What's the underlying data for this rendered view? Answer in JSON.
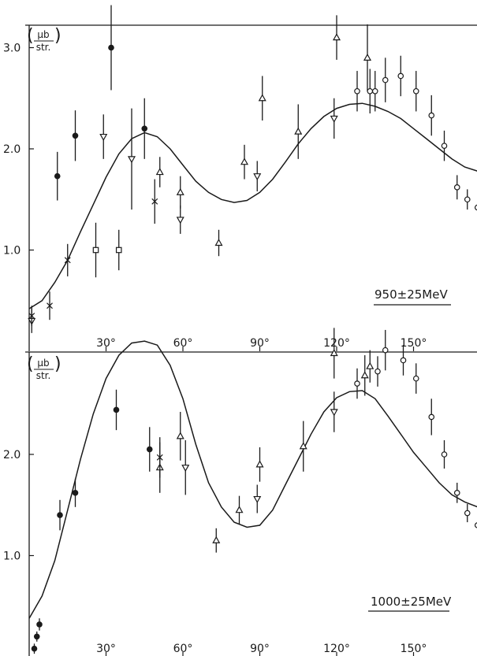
{
  "figure": {
    "ink_color": "#1a1a1a",
    "background_color": "#ffffff"
  },
  "chart_data": [
    {
      "type": "scatter",
      "label": "950±25MeV",
      "ylabel_num": "μb",
      "ylabel_den": "str.",
      "xlim": [
        0,
        175
      ],
      "ylim": [
        0,
        3.25
      ],
      "xticks": [
        30,
        60,
        90,
        120,
        150
      ],
      "xtick_labels": [
        "30°",
        "60°",
        "90°",
        "120°",
        "150°"
      ],
      "yticks": [
        1.0,
        2.0,
        3.0
      ],
      "ytick_labels": [
        "1.0",
        "2.0",
        "3.0"
      ],
      "series": [
        {
          "marker": "filled-circle",
          "points": [
            {
              "x": 11,
              "y": 1.73,
              "err": 0.24
            },
            {
              "x": 18,
              "y": 2.13,
              "err": 0.25
            },
            {
              "x": 32,
              "y": 3.0,
              "err": 0.42
            },
            {
              "x": 45,
              "y": 2.2,
              "err": 0.3
            }
          ]
        },
        {
          "marker": "down-triangle",
          "points": [
            {
              "x": 1,
              "y": 0.3,
              "err": 0.12
            },
            {
              "x": 29,
              "y": 2.12,
              "err": 0.22
            },
            {
              "x": 40,
              "y": 1.9,
              "err": 0.5
            },
            {
              "x": 59,
              "y": 1.3,
              "err": 0.14
            },
            {
              "x": 89,
              "y": 1.73,
              "err": 0.15
            },
            {
              "x": 119,
              "y": 2.3,
              "err": 0.2
            }
          ]
        },
        {
          "marker": "up-triangle",
          "points": [
            {
              "x": 51,
              "y": 1.77,
              "err": 0.15
            },
            {
              "x": 59,
              "y": 1.57,
              "err": 0.16
            },
            {
              "x": 74,
              "y": 1.07,
              "err": 0.13
            },
            {
              "x": 84,
              "y": 1.87,
              "err": 0.17
            },
            {
              "x": 91,
              "y": 2.5,
              "err": 0.22
            },
            {
              "x": 105,
              "y": 2.17,
              "err": 0.27
            },
            {
              "x": 120,
              "y": 3.1,
              "err": 0.22
            },
            {
              "x": 132,
              "y": 2.9,
              "err": 0.33
            }
          ]
        },
        {
          "marker": "cross",
          "points": [
            {
              "x": 1,
              "y": 0.35,
              "err": 0.1
            },
            {
              "x": 8,
              "y": 0.45,
              "err": 0.14
            },
            {
              "x": 15,
              "y": 0.9,
              "err": 0.16
            },
            {
              "x": 49,
              "y": 1.48,
              "err": 0.22
            }
          ]
        },
        {
          "marker": "square",
          "points": [
            {
              "x": 26,
              "y": 1.0,
              "err": 0.27
            },
            {
              "x": 35,
              "y": 1.0,
              "err": 0.2
            }
          ]
        },
        {
          "marker": "open-circle",
          "points": [
            {
              "x": 128,
              "y": 2.57,
              "err": 0.2
            },
            {
              "x": 133,
              "y": 2.57,
              "err": 0.22
            },
            {
              "x": 135,
              "y": 2.57,
              "err": 0.2
            },
            {
              "x": 139,
              "y": 2.68,
              "err": 0.22
            },
            {
              "x": 145,
              "y": 2.72,
              "err": 0.2
            },
            {
              "x": 151,
              "y": 2.57,
              "err": 0.2
            },
            {
              "x": 157,
              "y": 2.33,
              "err": 0.2
            },
            {
              "x": 162,
              "y": 2.03,
              "err": 0.15
            },
            {
              "x": 167,
              "y": 1.62,
              "err": 0.12
            },
            {
              "x": 171,
              "y": 1.5,
              "err": 0.1
            },
            {
              "x": 175,
              "y": 1.42,
              "err": 0.08
            }
          ]
        }
      ],
      "curve": {
        "x": [
          0,
          5,
          10,
          15,
          20,
          25,
          30,
          35,
          40,
          45,
          50,
          55,
          60,
          65,
          70,
          75,
          80,
          85,
          90,
          95,
          100,
          105,
          110,
          115,
          120,
          125,
          130,
          135,
          140,
          145,
          150,
          155,
          160,
          165,
          170,
          175
        ],
        "y": [
          0.42,
          0.5,
          0.68,
          0.9,
          1.18,
          1.45,
          1.72,
          1.95,
          2.1,
          2.16,
          2.12,
          2.0,
          1.84,
          1.68,
          1.57,
          1.5,
          1.47,
          1.49,
          1.57,
          1.7,
          1.87,
          2.05,
          2.2,
          2.32,
          2.4,
          2.44,
          2.45,
          2.42,
          2.37,
          2.3,
          2.2,
          2.1,
          2.0,
          1.9,
          1.82,
          1.78
        ]
      }
    },
    {
      "type": "scatter",
      "label": "1000±25MeV",
      "ylabel_num": "μb",
      "ylabel_den": "str.",
      "xlim": [
        0,
        175
      ],
      "ylim": [
        0,
        3.1
      ],
      "xticks": [
        30,
        60,
        90,
        120,
        150
      ],
      "xtick_labels": [
        "30°",
        "60°",
        "90°",
        "120°",
        "150°"
      ],
      "yticks": [
        1.0,
        2.0
      ],
      "ytick_labels": [
        "1.0",
        "2.0"
      ],
      "series": [
        {
          "marker": "filled-circle",
          "points": [
            {
              "x": 2,
              "y": 0.08,
              "err": 0.05
            },
            {
              "x": 3,
              "y": 0.2,
              "err": 0.05
            },
            {
              "x": 4,
              "y": 0.32,
              "err": 0.06
            },
            {
              "x": 12,
              "y": 1.4,
              "err": 0.15
            },
            {
              "x": 18,
              "y": 1.62,
              "err": 0.14
            },
            {
              "x": 34,
              "y": 2.44,
              "err": 0.2
            },
            {
              "x": 47,
              "y": 2.05,
              "err": 0.22
            }
          ]
        },
        {
          "marker": "down-triangle",
          "points": [
            {
              "x": 61,
              "y": 1.87,
              "err": 0.27
            },
            {
              "x": 89,
              "y": 1.56,
              "err": 0.14
            },
            {
              "x": 119,
              "y": 2.42,
              "err": 0.2
            }
          ]
        },
        {
          "marker": "up-triangle",
          "points": [
            {
              "x": 51,
              "y": 1.87,
              "err": 0.25
            },
            {
              "x": 59,
              "y": 2.18,
              "err": 0.24
            },
            {
              "x": 73,
              "y": 1.15,
              "err": 0.12
            },
            {
              "x": 82,
              "y": 1.45,
              "err": 0.14
            },
            {
              "x": 90,
              "y": 1.9,
              "err": 0.17
            },
            {
              "x": 107,
              "y": 2.08,
              "err": 0.25
            },
            {
              "x": 119,
              "y": 3.0,
              "err": 0.25
            },
            {
              "x": 131,
              "y": 2.78,
              "err": 0.2
            },
            {
              "x": 133,
              "y": 2.87,
              "err": 0.16
            }
          ]
        },
        {
          "marker": "cross",
          "points": [
            {
              "x": 51,
              "y": 1.97,
              "err": 0.2
            }
          ]
        },
        {
          "marker": "open-circle",
          "points": [
            {
              "x": 128,
              "y": 2.7,
              "err": 0.15
            },
            {
              "x": 136,
              "y": 2.82,
              "err": 0.15
            },
            {
              "x": 139,
              "y": 3.03,
              "err": 0.2
            },
            {
              "x": 146,
              "y": 2.93,
              "err": 0.15
            },
            {
              "x": 151,
              "y": 2.75,
              "err": 0.15
            },
            {
              "x": 157,
              "y": 2.37,
              "err": 0.18
            },
            {
              "x": 162,
              "y": 2.0,
              "err": 0.14
            },
            {
              "x": 167,
              "y": 1.62,
              "err": 0.1
            },
            {
              "x": 171,
              "y": 1.42,
              "err": 0.09
            },
            {
              "x": 175,
              "y": 1.3,
              "err": 0.08
            }
          ]
        }
      ],
      "curve": {
        "x": [
          0,
          5,
          10,
          15,
          20,
          25,
          30,
          35,
          40,
          45,
          50,
          55,
          60,
          65,
          70,
          75,
          80,
          85,
          90,
          95,
          100,
          105,
          110,
          115,
          120,
          125,
          130,
          135,
          140,
          145,
          150,
          155,
          160,
          165,
          170,
          175
        ],
        "y": [
          0.38,
          0.6,
          0.95,
          1.45,
          1.95,
          2.4,
          2.75,
          2.98,
          3.1,
          3.12,
          3.08,
          2.88,
          2.55,
          2.1,
          1.72,
          1.48,
          1.33,
          1.28,
          1.3,
          1.45,
          1.7,
          1.95,
          2.2,
          2.42,
          2.56,
          2.62,
          2.63,
          2.55,
          2.38,
          2.2,
          2.02,
          1.87,
          1.72,
          1.6,
          1.53,
          1.48
        ]
      }
    }
  ]
}
